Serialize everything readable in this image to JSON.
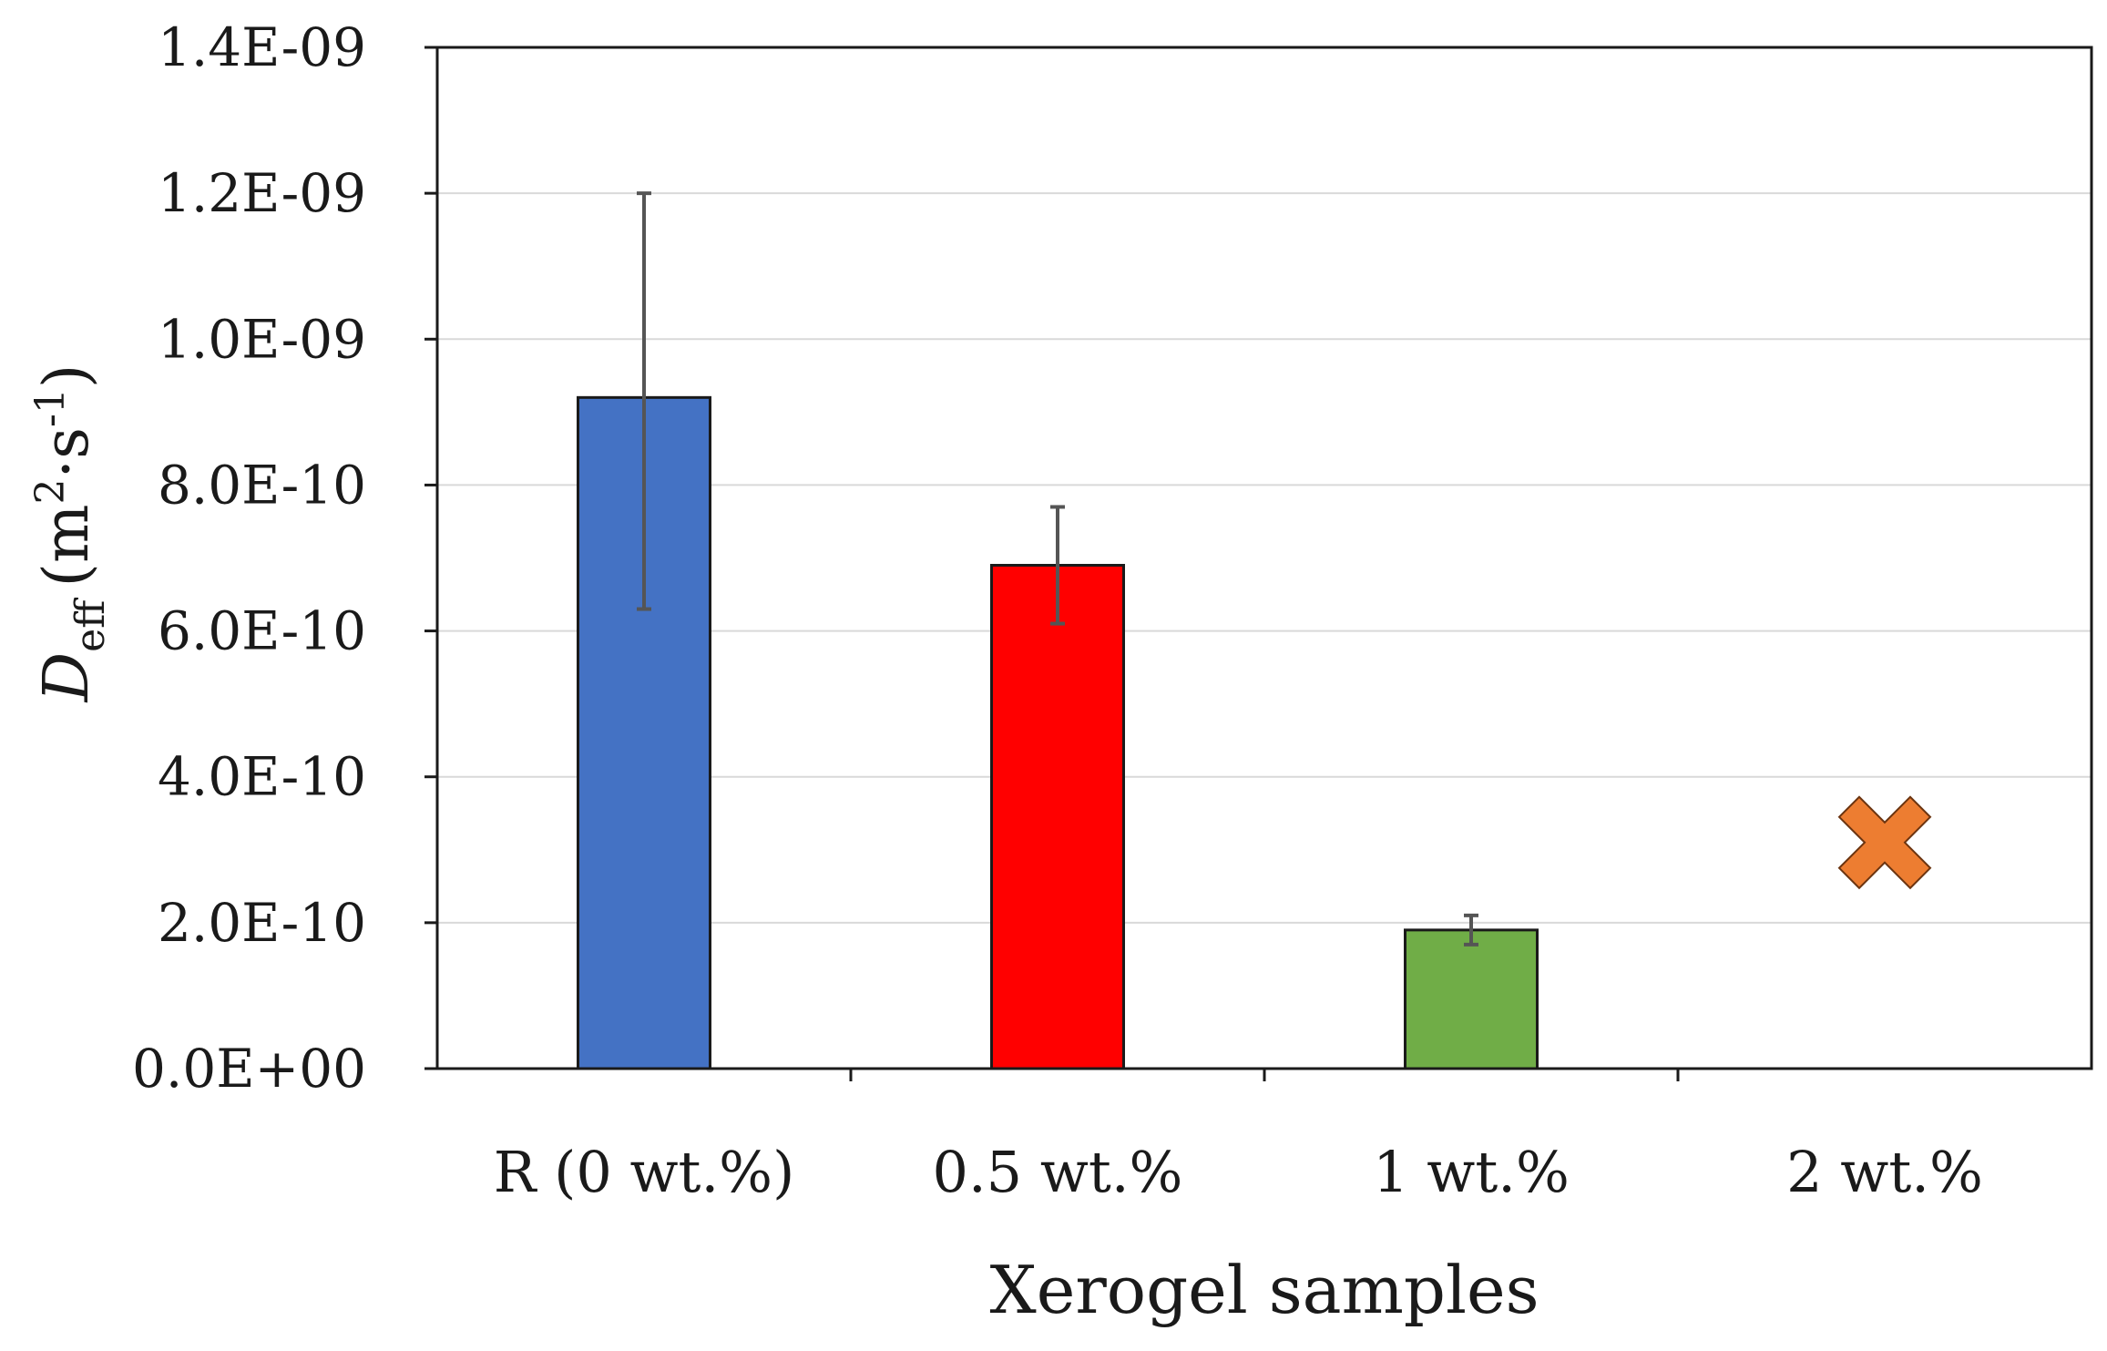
{
  "chart_data": {
    "type": "bar",
    "xlabel": "Xerogel samples",
    "ylabel": {
      "symbol": "D",
      "subscript": "eff",
      "unit_open": "(m",
      "unit_sup1": "2",
      "unit_mid": "·s",
      "unit_sup2": "-1",
      "unit_close": ")"
    },
    "ylim": [
      0,
      1.4e-09
    ],
    "yticks": [
      0,
      2e-10,
      4e-10,
      6e-10,
      8e-10,
      1e-09,
      1.2e-09,
      1.4e-09
    ],
    "ytick_labels": [
      "0.0E+00",
      "2.0E-10",
      "4.0E-10",
      "6.0E-10",
      "8.0E-10",
      "1.0E-09",
      "1.2E-09",
      "1.4E-09"
    ],
    "grid": true,
    "categories": [
      "R (0 wt.%)",
      "0.5 wt.%",
      "1 wt.%",
      "2 wt.%"
    ],
    "values": [
      9.2e-10,
      6.9e-10,
      1.9e-10,
      null
    ],
    "error_low": [
      6.3e-10,
      6.1e-10,
      1.7e-10,
      null
    ],
    "error_high": [
      1.2e-09,
      7.7e-10,
      2.1e-10,
      null
    ],
    "colors": [
      "#4472C4",
      "#FF0000",
      "#70AD47",
      "#ED7D31"
    ],
    "markers": [
      {
        "category_index": 3,
        "value": 3.1e-10,
        "shape": "cross-icon",
        "color": "#ED7D31"
      }
    ]
  }
}
